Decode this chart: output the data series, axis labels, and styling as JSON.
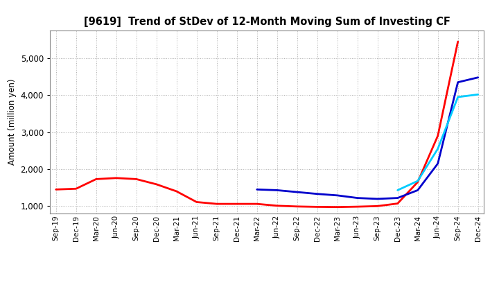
{
  "title": "[9619]  Trend of StDev of 12-Month Moving Sum of Investing CF",
  "ylabel": "Amount (million yen)",
  "background_color": "#ffffff",
  "grid_color": "#b0b0b0",
  "xlabels": [
    "Sep-19",
    "Dec-19",
    "Mar-20",
    "Jun-20",
    "Sep-20",
    "Dec-20",
    "Mar-21",
    "Jun-21",
    "Sep-21",
    "Dec-21",
    "Mar-22",
    "Jun-22",
    "Sep-22",
    "Dec-22",
    "Mar-23",
    "Jun-23",
    "Sep-23",
    "Dec-23",
    "Mar-24",
    "Jun-24",
    "Sep-24",
    "Dec-24"
  ],
  "y3": [
    1450,
    1470,
    1730,
    1760,
    1730,
    1590,
    1400,
    1110,
    1060,
    1060,
    1060,
    1010,
    990,
    980,
    975,
    985,
    1000,
    1070,
    1650,
    2900,
    5450,
    null
  ],
  "y5": [
    null,
    null,
    null,
    null,
    null,
    null,
    null,
    null,
    null,
    null,
    1450,
    1430,
    1380,
    1330,
    1290,
    1220,
    1195,
    1220,
    1430,
    2150,
    4350,
    4480
  ],
  "y7": [
    null,
    null,
    null,
    null,
    null,
    null,
    null,
    null,
    null,
    null,
    null,
    null,
    null,
    null,
    null,
    null,
    null,
    1430,
    1680,
    2550,
    3950,
    4020
  ],
  "y10": [
    null,
    null,
    null,
    null,
    null,
    null,
    null,
    null,
    null,
    null,
    null,
    null,
    null,
    null,
    null,
    null,
    null,
    null,
    null,
    null,
    null,
    null
  ],
  "colors": {
    "3y": "#ff0000",
    "5y": "#0000cc",
    "7y": "#00ccff",
    "10y": "#008800"
  },
  "ylim": [
    800,
    5750
  ],
  "yticks": [
    1000,
    2000,
    3000,
    4000,
    5000
  ]
}
